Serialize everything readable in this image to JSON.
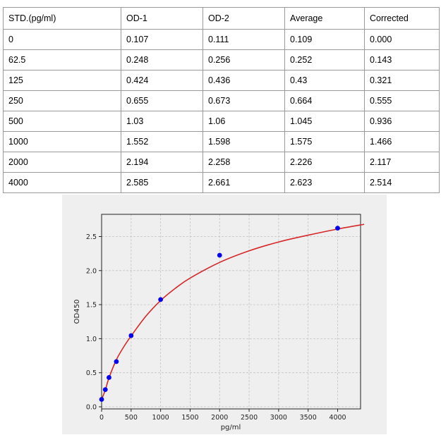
{
  "table": {
    "headers": [
      "STD.(pg/ml)",
      "OD-1",
      "OD-2",
      "Average",
      "Corrected"
    ],
    "rows": [
      [
        "0",
        "0.107",
        "0.111",
        "0.109",
        "0.000"
      ],
      [
        "62.5",
        "0.248",
        "0.256",
        "0.252",
        "0.143"
      ],
      [
        "125",
        "0.424",
        "0.436",
        "0.43",
        "0.321"
      ],
      [
        "250",
        "0.655",
        "0.673",
        "0.664",
        "0.555"
      ],
      [
        "500",
        "1.03",
        "1.06",
        "1.045",
        "0.936"
      ],
      [
        "1000",
        "1.552",
        "1.598",
        "1.575",
        "1.466"
      ],
      [
        "2000",
        "2.194",
        "2.258",
        "2.226",
        "2.117"
      ],
      [
        "4000",
        "2.585",
        "2.661",
        "2.623",
        "2.514"
      ]
    ]
  },
  "chart_data": {
    "type": "scatter",
    "title": "",
    "xlabel": "pg/ml",
    "ylabel": "OD450",
    "xlim": [
      0,
      4450
    ],
    "ylim": [
      0,
      2.7
    ],
    "x_ticks": [
      0,
      500,
      1000,
      1500,
      2000,
      2500,
      3000,
      3500,
      4000
    ],
    "y_ticks": [
      0.0,
      0.5,
      1.0,
      1.5,
      2.0,
      2.5
    ],
    "x_tick_labels": [
      "0",
      "500",
      "1000",
      "1500",
      "2000",
      "2500",
      "3000",
      "3500",
      "4000"
    ],
    "y_tick_labels": [
      "0.0",
      "0.5",
      "1.0",
      "1.5",
      "2.0",
      "2.5"
    ],
    "grid": true,
    "series": [
      {
        "kind": "points",
        "color": "#0000ee",
        "x": [
          0,
          62.5,
          125,
          250,
          500,
          1000,
          2000,
          4000
        ],
        "y": [
          0.109,
          0.252,
          0.43,
          0.664,
          1.045,
          1.575,
          2.226,
          2.623
        ]
      },
      {
        "kind": "fitted-curve",
        "color": "#d62728",
        "x": [
          0,
          62.5,
          125,
          250,
          375,
          500,
          750,
          1000,
          1250,
          1500,
          2000,
          2500,
          3000,
          3500,
          4000,
          4450
        ],
        "y": [
          0.11,
          0.245,
          0.425,
          0.69,
          0.88,
          1.04,
          1.33,
          1.56,
          1.74,
          1.89,
          2.12,
          2.29,
          2.42,
          2.52,
          2.61,
          2.68
        ]
      }
    ]
  }
}
